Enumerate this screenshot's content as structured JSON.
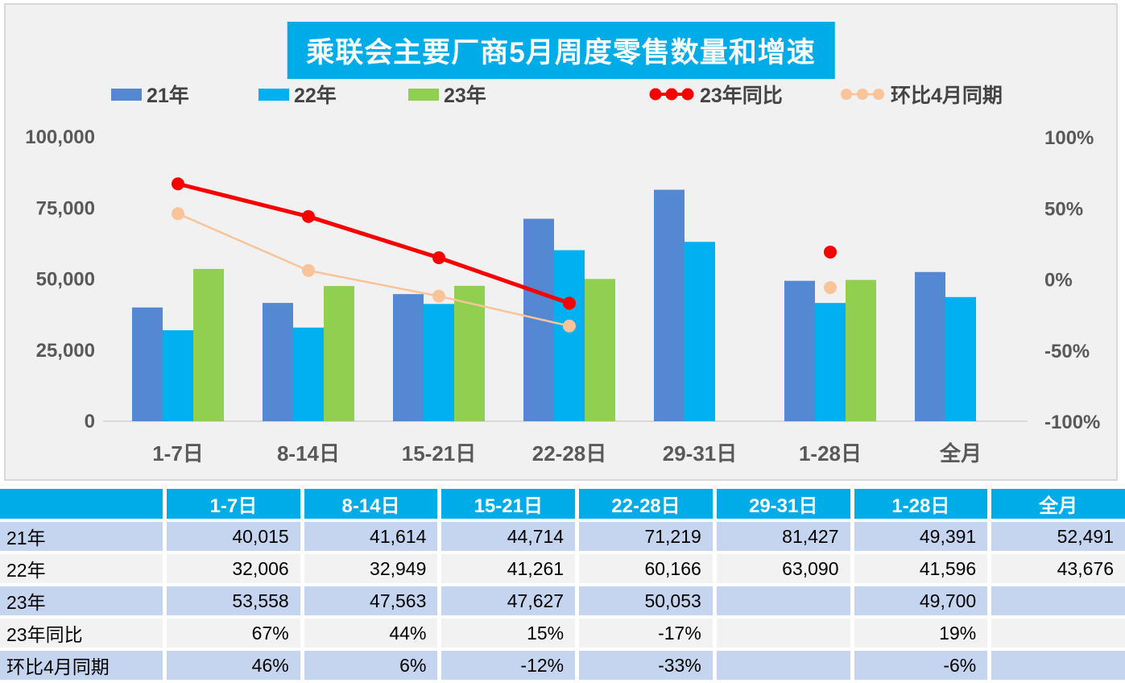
{
  "title": "乘联会主要厂商5月周度零售数量和增速",
  "colors": {
    "title_bg": "#00ACE8",
    "bar_21": "#5588D2",
    "bar_22": "#00B0F0",
    "bar_23": "#90CF50",
    "line_yoy": "#F80000",
    "line_mom": "#F9C499",
    "table_header_bg": "#00ACE8",
    "row_blue": "#C5D5EF",
    "row_gray": "#F2F2F2",
    "axis_text": "#595959",
    "panel_bg": "#F1F1F1"
  },
  "legend": [
    {
      "label": "21年",
      "type": "bar",
      "color": "#5588D2"
    },
    {
      "label": "22年",
      "type": "bar",
      "color": "#00B0F0"
    },
    {
      "label": "23年",
      "type": "bar",
      "color": "#90CF50"
    },
    {
      "label": "23年同比",
      "type": "line",
      "color": "#F80000"
    },
    {
      "label": "环比4月同期",
      "type": "line",
      "color": "#F9C499"
    }
  ],
  "chart_data": {
    "type": "bar",
    "subtype": "grouped bars with two percent lines on secondary axis",
    "title": "乘联会主要厂商5月周度零售数量和增速",
    "categories": [
      "1-7日",
      "8-14日",
      "15-21日",
      "22-28日",
      "29-31日",
      "1-28日",
      "全月"
    ],
    "bar_series": [
      {
        "name": "21年",
        "color": "#5588D2",
        "values": [
          40015,
          41614,
          44714,
          71219,
          81427,
          49391,
          52491
        ]
      },
      {
        "name": "22年",
        "color": "#00B0F0",
        "values": [
          32006,
          32949,
          41261,
          60166,
          63090,
          41596,
          43676
        ]
      },
      {
        "name": "23年",
        "color": "#90CF50",
        "values": [
          53558,
          47563,
          47627,
          50053,
          null,
          49700,
          null
        ]
      }
    ],
    "line_series": [
      {
        "name": "23年同比",
        "color": "#F80000",
        "width": 5,
        "values": [
          67,
          44,
          15,
          -17,
          null,
          19,
          null
        ]
      },
      {
        "name": "环比4月同期",
        "color": "#F9C499",
        "width": 2.5,
        "values": [
          46,
          6,
          -12,
          -33,
          null,
          -6,
          null
        ]
      }
    ],
    "left_axis": {
      "max": 100000,
      "min": 0,
      "ticks": [
        {
          "label": "100,000",
          "value": 100000
        },
        {
          "label": "75,000",
          "value": 75000
        },
        {
          "label": "50,000",
          "value": 50000
        },
        {
          "label": "25,000",
          "value": 25000
        },
        {
          "label": "0",
          "value": 0
        }
      ]
    },
    "right_axis": {
      "max": 100,
      "min": -100,
      "ticks": [
        {
          "label": "100%",
          "value": 100
        },
        {
          "label": "50%",
          "value": 50
        },
        {
          "label": "0%",
          "value": 0
        },
        {
          "label": "-50%",
          "value": -50
        },
        {
          "label": "-100%",
          "value": -100
        }
      ]
    },
    "grid": false,
    "legend_position": "top"
  },
  "table": {
    "columns": [
      "",
      "1-7日",
      "8-14日",
      "15-21日",
      "22-28日",
      "29-31日",
      "1-28日",
      "全月"
    ],
    "rows": [
      {
        "label": "21年",
        "shade": "blue",
        "cells": [
          "40,015",
          "41,614",
          "44,714",
          "71,219",
          "81,427",
          "49,391",
          "52,491"
        ]
      },
      {
        "label": "22年",
        "shade": "gray",
        "cells": [
          "32,006",
          "32,949",
          "41,261",
          "60,166",
          "63,090",
          "41,596",
          "43,676"
        ]
      },
      {
        "label": "23年",
        "shade": "blue",
        "cells": [
          "53,558",
          "47,563",
          "47,627",
          "50,053",
          "",
          "49,700",
          ""
        ]
      },
      {
        "label": "23年同比",
        "shade": "gray",
        "cells": [
          "67%",
          "44%",
          "15%",
          "-17%",
          "",
          "19%",
          ""
        ]
      },
      {
        "label": "环比4月同期",
        "shade": "blue",
        "cells": [
          "46%",
          "6%",
          "-12%",
          "-33%",
          "",
          "-6%",
          ""
        ]
      }
    ]
  }
}
